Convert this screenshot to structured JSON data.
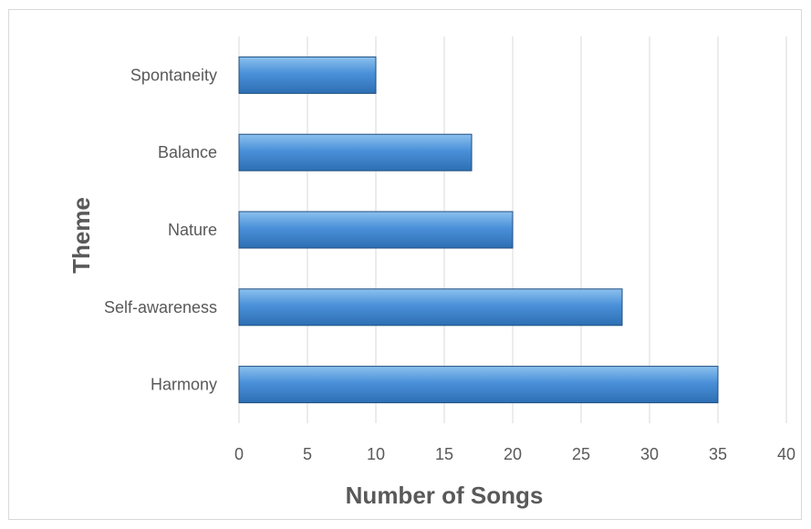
{
  "chart_data": {
    "type": "bar",
    "orientation": "horizontal",
    "categories": [
      "Spontaneity",
      "Balance",
      "Nature",
      "Self-awareness",
      "Harmony"
    ],
    "values": [
      10,
      17,
      20,
      28,
      35
    ],
    "xlabel": "Number of Songs",
    "ylabel": "Theme",
    "xlim": [
      0,
      40
    ],
    "xticks": [
      "0",
      "5",
      "10",
      "15",
      "20",
      "25",
      "30",
      "35",
      "40"
    ],
    "grid": "vertical",
    "bar_color": "#4a90d9",
    "legend": "none"
  }
}
